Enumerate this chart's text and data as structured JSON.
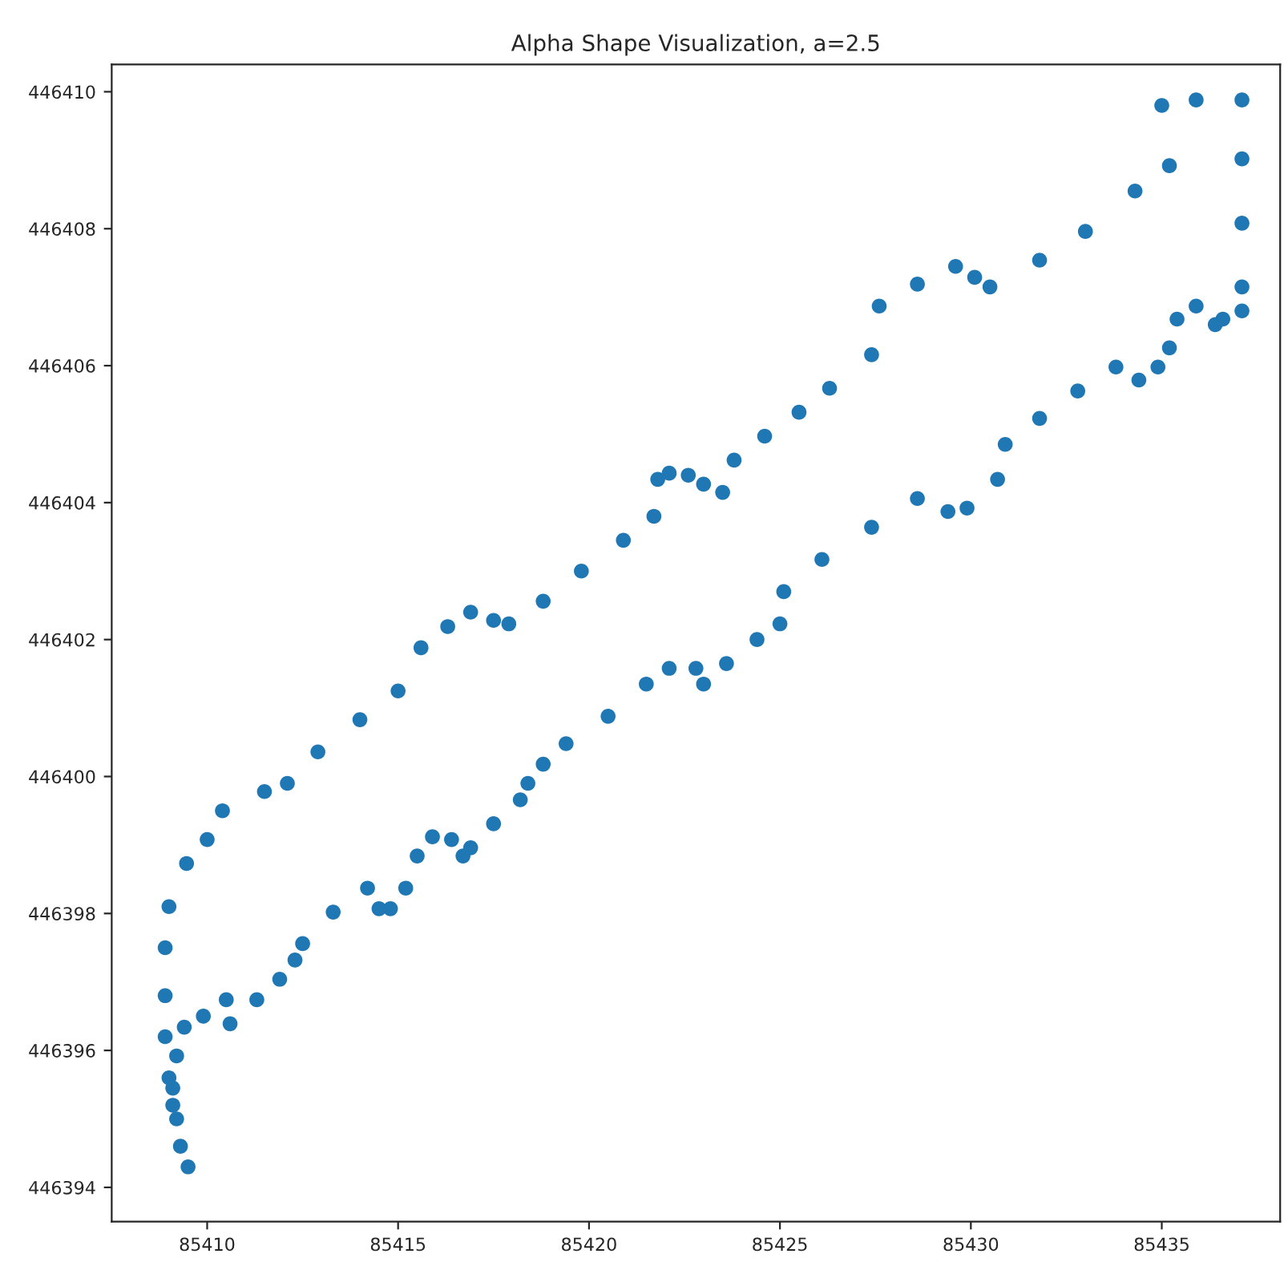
{
  "chart_data": {
    "type": "scatter",
    "title": "Alpha Shape Visualization, a=2.5",
    "xlim": [
      85407.5,
      85438.1
    ],
    "ylim": [
      446393.5,
      446410.4
    ],
    "xticks": [
      85410,
      85415,
      85420,
      85425,
      85430,
      85435
    ],
    "yticks": [
      446394,
      446396,
      446398,
      446400,
      446402,
      446404,
      446406,
      446408,
      446410
    ],
    "grid": false,
    "marker": "circle",
    "series": [
      {
        "color": "#1f77b4",
        "x": [
          85409.5,
          85409.3,
          85409.2,
          85409.1,
          85409.0,
          85408.9,
          85408.9,
          85408.9,
          85409.0,
          85409.46,
          85410.0,
          85410.4,
          85411.5,
          85412.1,
          85412.9,
          85414.0,
          85415.0,
          85415.6,
          85416.3,
          85416.9,
          85417.5,
          85417.9,
          85418.8,
          85419.8,
          85420.9,
          85421.7,
          85421.8,
          85422.1,
          85422.6,
          85423.0,
          85423.5,
          85423.8,
          85424.6,
          85425.5,
          85426.3,
          85427.4,
          85427.6,
          85428.6,
          85429.6,
          85430.1,
          85430.5,
          85431.8,
          85433.0,
          85434.3,
          85435.2,
          85435.0,
          85435.9,
          85437.1,
          85437.1,
          85437.1,
          85437.1,
          85437.1,
          85436.6,
          85436.4,
          85435.9,
          85435.4,
          85435.2,
          85434.9,
          85434.4,
          85433.8,
          85432.8,
          85431.8,
          85430.9,
          85430.7,
          85429.9,
          85429.4,
          85428.6,
          85427.4,
          85426.1,
          85425.1,
          85425.0,
          85424.4,
          85423.6,
          85423.0,
          85422.8,
          85422.1,
          85421.5,
          85420.5,
          85419.4,
          85418.8,
          85418.4,
          85418.2,
          85417.5,
          85416.9,
          85416.7,
          85416.4,
          85415.9,
          85415.5,
          85415.2,
          85414.8,
          85414.5,
          85414.2,
          85413.3,
          85412.5,
          85412.3,
          85411.9,
          85411.3,
          85410.6,
          85410.5,
          85409.9,
          85409.4,
          85409.2,
          85409.1
        ],
        "values": [
          446394.3,
          446394.6,
          446395.0,
          446395.2,
          446395.6,
          446396.2,
          446396.8,
          446397.5,
          446398.1,
          446398.73,
          446399.08,
          446399.5,
          446399.78,
          446399.9,
          446400.36,
          446400.83,
          446401.25,
          446401.88,
          446402.19,
          446402.4,
          446402.28,
          446402.23,
          446402.56,
          446403.0,
          446403.45,
          446403.8,
          446404.34,
          446404.43,
          446404.4,
          446404.27,
          446404.15,
          446404.62,
          446404.97,
          446405.32,
          446405.67,
          446406.16,
          446406.87,
          446407.19,
          446407.45,
          446407.29,
          446407.15,
          446407.54,
          446407.96,
          446408.55,
          446408.92,
          446409.8,
          446409.88,
          446409.88,
          446409.02,
          446408.08,
          446407.15,
          446406.8,
          446406.68,
          446406.6,
          446406.87,
          446406.68,
          446406.26,
          446405.98,
          446405.79,
          446405.98,
          446405.63,
          446405.23,
          446404.85,
          446404.34,
          446403.92,
          446403.87,
          446404.06,
          446403.64,
          446403.17,
          446402.7,
          446402.23,
          446402.0,
          446401.65,
          446401.35,
          446401.58,
          446401.58,
          446401.35,
          446400.88,
          446400.48,
          446400.18,
          446399.9,
          446399.66,
          446399.31,
          446398.96,
          446398.84,
          446399.08,
          446399.12,
          446398.84,
          446398.37,
          446398.07,
          446398.07,
          446398.37,
          446398.02,
          446397.56,
          446397.32,
          446397.04,
          446396.74,
          446396.39,
          446396.74,
          446396.5,
          446396.34,
          446395.92,
          446395.45
        ]
      }
    ]
  }
}
